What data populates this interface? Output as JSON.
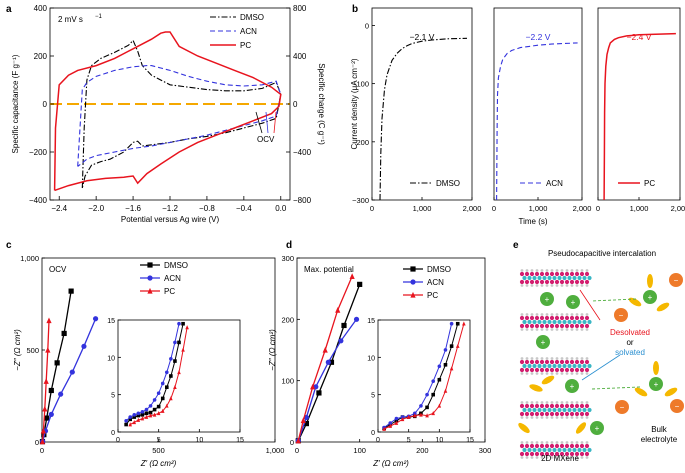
{
  "colors": {
    "dmso": "#000000",
    "acn": "#3333dd",
    "pc": "#e8141e",
    "zero": "#f5a800",
    "h_atom": "#c8c8c8",
    "ti_atom": "#d31e6f",
    "c_atom": "#39b6c4",
    "cation": "#4fae3e",
    "anion": "#ee7a2a",
    "solvent": "#f5b800",
    "desolvated": "#e8141e",
    "solvated": "#2a8fd0"
  },
  "chart_data": [
    {
      "panel": "a",
      "type": "line",
      "annotation_rate": "2 mV s",
      "annotation_rate_sup": "−1",
      "xlabel": "Potential versus Ag wire (V)",
      "ylabel": "Specific capacitance (F g⁻¹)",
      "y2label": "Specific charge (C g⁻¹)",
      "xlim": [
        -2.5,
        0.1
      ],
      "ylim": [
        -400,
        400
      ],
      "y2lim": [
        -800,
        800
      ],
      "xticks": [
        "−2.4",
        "−2.0",
        "−1.6",
        "−1.2",
        "−0.8",
        "−0.4",
        "0.0"
      ],
      "yticks": [
        "400",
        "200",
        "0",
        "−200",
        "−400"
      ],
      "y2ticks": [
        "800",
        "400",
        "0",
        "−400",
        "−800"
      ],
      "ocv_label": "OCV",
      "series": [
        {
          "name": "DMSO",
          "style": "dashdot",
          "x": [
            -2.15,
            -2.13,
            -2.1,
            -2.05,
            -1.95,
            -1.8,
            -1.65,
            -1.6,
            -1.55,
            -1.5,
            -1.4,
            -1.2,
            -1.0,
            -0.8,
            -0.6,
            -0.4,
            -0.2,
            -0.05,
            0.0,
            -0.05,
            -0.2,
            -0.4,
            -0.6,
            -0.8,
            -1.0,
            -1.2,
            -1.4,
            -1.5,
            -1.55,
            -1.6,
            -1.7,
            -1.85,
            -1.95,
            -2.05,
            -2.12,
            -2.15
          ],
          "y": [
            -350,
            -100,
            100,
            160,
            190,
            215,
            245,
            265,
            220,
            160,
            120,
            80,
            70,
            60,
            55,
            55,
            65,
            90,
            40,
            -60,
            -80,
            -100,
            -120,
            -135,
            -145,
            -160,
            -170,
            -175,
            -155,
            -160,
            -200,
            -230,
            -240,
            -255,
            -300,
            -350
          ]
        },
        {
          "name": "ACN",
          "style": "dashed",
          "x": [
            -2.2,
            -2.15,
            -2.1,
            -2.0,
            -1.8,
            -1.6,
            -1.45,
            -1.4,
            -1.3,
            -1.2,
            -1.0,
            -0.8,
            -0.6,
            -0.4,
            -0.2,
            -0.05,
            0.0,
            -0.05,
            -0.2,
            -0.4,
            -0.6,
            -0.8,
            -1.0,
            -1.2,
            -1.4,
            -1.6,
            -1.8,
            -2.0,
            -2.1,
            -2.2
          ],
          "y": [
            -260,
            60,
            90,
            115,
            140,
            155,
            160,
            160,
            150,
            140,
            115,
            95,
            80,
            75,
            80,
            95,
            40,
            -50,
            -70,
            -90,
            -110,
            -130,
            -145,
            -160,
            -175,
            -185,
            -200,
            -215,
            -230,
            -260
          ]
        },
        {
          "name": "PC",
          "style": "solid",
          "x": [
            -2.45,
            -2.44,
            -2.4,
            -2.3,
            -2.2,
            -2.0,
            -1.8,
            -1.6,
            -1.4,
            -1.3,
            -1.25,
            -1.2,
            -1.1,
            -0.9,
            -0.7,
            -0.5,
            -0.3,
            -0.1,
            0.0,
            -0.02,
            -0.1,
            -0.3,
            -0.5,
            -0.7,
            -0.9,
            -1.1,
            -1.3,
            -1.45,
            -1.55,
            -1.6,
            -1.7,
            -1.9,
            -2.1,
            -2.3,
            -2.45
          ],
          "y": [
            -360,
            -100,
            80,
            120,
            140,
            160,
            190,
            230,
            270,
            295,
            300,
            300,
            240,
            200,
            170,
            140,
            110,
            70,
            40,
            -10,
            -40,
            -70,
            -100,
            -130,
            -160,
            -200,
            -250,
            -290,
            -330,
            -300,
            -305,
            -310,
            -320,
            -340,
            -360
          ]
        }
      ]
    },
    {
      "panel": "b",
      "type": "line",
      "ylabel": "Current density (μA cm⁻²)",
      "xlabel": "Time (s)",
      "ylim": [
        -300,
        30
      ],
      "xlim": [
        0,
        2000
      ],
      "yticks": [
        "0",
        "−100",
        "−200",
        "−300"
      ],
      "xticks": [
        "0",
        "1,000",
        "2,000"
      ],
      "subplots": [
        {
          "name": "DMSO",
          "style": "dashdot",
          "voltage": "−2.1 V",
          "x": [
            160,
            175,
            200,
            250,
            300,
            400,
            500,
            600,
            700,
            800,
            1000,
            1200,
            1500,
            1900
          ],
          "y": [
            -300,
            -220,
            -160,
            -110,
            -85,
            -60,
            -48,
            -40,
            -35,
            -31,
            -27,
            -25,
            -23,
            -22
          ]
        },
        {
          "name": "ACN",
          "style": "dashed",
          "voltage": "−2.2 V",
          "x": [
            60,
            70,
            80,
            100,
            150,
            200,
            300,
            400,
            600,
            800,
            1000,
            1300,
            1600,
            1900
          ],
          "y": [
            -300,
            -180,
            -120,
            -90,
            -70,
            -58,
            -48,
            -43,
            -38,
            -36,
            -34,
            -32,
            -31,
            -30
          ]
        },
        {
          "name": "PC",
          "style": "solid",
          "voltage": "−2.4 V",
          "x": [
            150,
            155,
            160,
            170,
            190,
            220,
            260,
            300,
            400,
            500,
            700,
            1000,
            1400,
            1900
          ],
          "y": [
            -300,
            -220,
            -150,
            -100,
            -70,
            -50,
            -38,
            -30,
            -24,
            -21,
            -18,
            -16,
            -15,
            -14
          ]
        }
      ]
    },
    {
      "panel": "c",
      "type": "scatter",
      "annotation": "OCV",
      "xlabel": "Z′ (Ω cm²)",
      "ylabel": "−Z″ (Ω cm²)",
      "xlim": [
        0,
        1000
      ],
      "ylim": [
        0,
        1000
      ],
      "xticks": [
        "0",
        "500",
        "1,000"
      ],
      "yticks": [
        "0",
        "500",
        "1,000"
      ],
      "series": [
        {
          "name": "DMSO",
          "marker": "square",
          "x": [
            2,
            8,
            20,
            40,
            65,
            95,
            125
          ],
          "y": [
            2,
            40,
            130,
            280,
            430,
            590,
            820
          ]
        },
        {
          "name": "ACN",
          "marker": "circle",
          "x": [
            3,
            15,
            40,
            80,
            130,
            180,
            230
          ],
          "y": [
            3,
            60,
            150,
            260,
            380,
            520,
            670
          ]
        },
        {
          "name": "PC",
          "marker": "triangle",
          "x": [
            2,
            6,
            12,
            18,
            25,
            30
          ],
          "y": [
            2,
            60,
            180,
            330,
            500,
            660
          ]
        }
      ],
      "inset": {
        "xlim": [
          0,
          15
        ],
        "ylim": [
          0,
          15
        ],
        "xticks": [
          "0",
          "5",
          "10",
          "15"
        ],
        "yticks": [
          "0",
          "5",
          "10",
          "15"
        ],
        "series": [
          {
            "name": "DMSO",
            "x": [
              1,
              1.5,
              2,
              2.5,
              3,
              3.5,
              4,
              4.5,
              5,
              5.5,
              6,
              6.5,
              7,
              7.5,
              8
            ],
            "y": [
              1,
              1.7,
              2,
              2.2,
              2.3,
              2.5,
              2.6,
              3,
              3.4,
              4.5,
              6,
              7.5,
              9.5,
              12,
              14.5
            ]
          },
          {
            "name": "ACN",
            "x": [
              1,
              1.5,
              2,
              2.5,
              3,
              3.5,
              4,
              4.5,
              5,
              5.5,
              6,
              6.5,
              7,
              7.5
            ],
            "y": [
              1.5,
              2,
              2.3,
              2.5,
              2.7,
              3,
              3.5,
              4.3,
              5.2,
              6.5,
              8,
              9.8,
              12,
              14.5
            ]
          },
          {
            "name": "PC",
            "x": [
              1.5,
              2,
              2.5,
              3,
              3.5,
              4,
              4.5,
              5,
              5.5,
              6,
              6.5,
              7,
              7.5,
              8,
              8.5
            ],
            "y": [
              1,
              1.3,
              1.6,
              1.8,
              2,
              2.2,
              2.3,
              2.5,
              2.8,
              3.5,
              4.5,
              6,
              8,
              11,
              14
            ]
          }
        ]
      }
    },
    {
      "panel": "d",
      "type": "scatter",
      "annotation": "Max. potential",
      "xlabel": "Z′ (Ω cm²)",
      "ylabel": "−Z″ (Ω cm²)",
      "xlim": [
        0,
        300
      ],
      "ylim": [
        0,
        300
      ],
      "xticks": [
        "0",
        "100",
        "200",
        "300"
      ],
      "yticks": [
        "0",
        "100",
        "200",
        "300"
      ],
      "series": [
        {
          "name": "DMSO",
          "marker": "square",
          "x": [
            2,
            15,
            35,
            55,
            75,
            100
          ],
          "y": [
            2,
            30,
            80,
            130,
            190,
            257
          ]
        },
        {
          "name": "ACN",
          "marker": "circle",
          "x": [
            2,
            15,
            30,
            50,
            70,
            95
          ],
          "y": [
            2,
            40,
            90,
            130,
            165,
            200
          ]
        },
        {
          "name": "PC",
          "marker": "triangle",
          "x": [
            2,
            10,
            25,
            45,
            65,
            88
          ],
          "y": [
            2,
            35,
            90,
            150,
            215,
            270
          ]
        }
      ],
      "inset": {
        "xlim": [
          0,
          15
        ],
        "ylim": [
          0,
          15
        ],
        "xticks": [
          "0",
          "5",
          "10",
          "15"
        ],
        "yticks": [
          "0",
          "5",
          "10",
          "15"
        ],
        "series": [
          {
            "name": "DMSO",
            "x": [
              1,
              2,
              3,
              4,
              5,
              6,
              7,
              8,
              9,
              10,
              11,
              12,
              13
            ],
            "y": [
              0.5,
              1,
              1.5,
              2,
              2,
              2.1,
              2.5,
              3.3,
              5,
              7,
              9,
              11.5,
              14.5
            ]
          },
          {
            "name": "ACN",
            "x": [
              1,
              2,
              3,
              4,
              5,
              6,
              7,
              8,
              9,
              10,
              11,
              12
            ],
            "y": [
              0.6,
              1.2,
              1.8,
              2,
              2.1,
              2.5,
              3.5,
              5,
              6.8,
              8.8,
              11,
              14.5
            ]
          },
          {
            "name": "PC",
            "x": [
              1,
              2,
              3,
              4,
              5,
              6,
              7,
              8,
              9,
              10,
              11,
              12,
              13,
              14
            ],
            "y": [
              0.4,
              0.8,
              1.2,
              1.7,
              2,
              2.2,
              2.3,
              2.2,
              2.5,
              3.5,
              5.5,
              8.5,
              11.5,
              14.5
            ]
          }
        ]
      }
    }
  ],
  "panel_labels": [
    "a",
    "b",
    "c",
    "d",
    "e"
  ],
  "schematic": {
    "title": "Pseudocapacitive intercalation",
    "desolvated": "Desolvated",
    "or": "or",
    "solvated": "solvated",
    "mxene_label": "2D MXene",
    "bulk_label": "Bulk\nelectrolyte",
    "cation_sign": "+",
    "anion_sign": "−"
  }
}
